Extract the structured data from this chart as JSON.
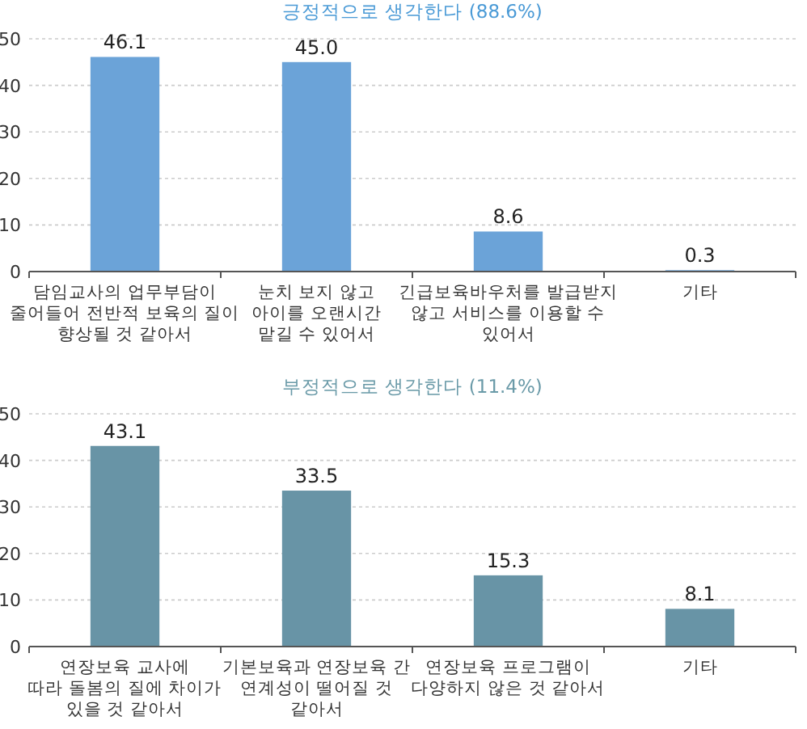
{
  "chart_data": [
    {
      "type": "bar",
      "title": "긍정적으로 생각한다 (88.6%)",
      "categories": [
        "담임교사의 업무부담이\n줄어들어 전반적 보육의 질이\n향상될 것 같아서",
        "눈치 보지 않고\n아이를 오랜시간\n맡길 수 있어서",
        "긴급보육바우처를 발급받지\n않고 서비스를 이용할 수\n있어서",
        "기타"
      ],
      "values": [
        46.1,
        45.0,
        8.6,
        0.3
      ],
      "value_labels": [
        "46.1",
        "45.0",
        "8.6",
        "0.3"
      ],
      "color": "#6ba3d8",
      "ylim": [
        0,
        50
      ],
      "yticks": [
        0,
        10,
        20,
        30,
        40,
        50
      ],
      "grid": "y"
    },
    {
      "type": "bar",
      "title": "부정적으로 생각한다 (11.4%)",
      "categories": [
        "연장보육 교사에\n따라 돌봄의 질에 차이가\n있을 것 같아서",
        "기본보육과 연장보육 간\n연계성이 떨어질 것\n같아서",
        "연장보육 프로그램이\n다양하지 않은 것 같아서",
        "기타"
      ],
      "values": [
        43.1,
        33.5,
        15.3,
        8.1
      ],
      "value_labels": [
        "43.1",
        "33.5",
        "15.3",
        "8.1"
      ],
      "color": "#6894a6",
      "ylim": [
        0,
        50
      ],
      "yticks": [
        0,
        10,
        20,
        30,
        40,
        50
      ],
      "grid": "y"
    }
  ]
}
